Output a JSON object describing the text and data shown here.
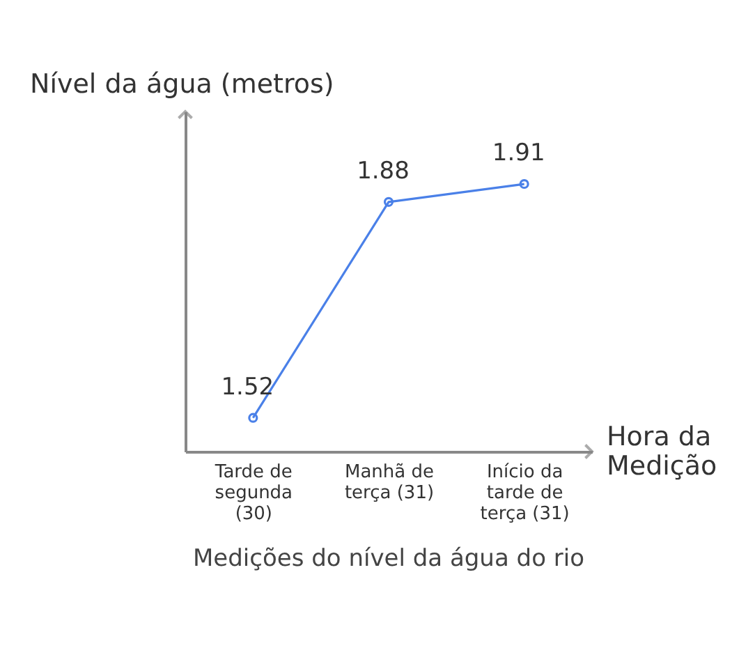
{
  "chart_data": {
    "type": "line",
    "title": "Medições do nível da água do rio",
    "xlabel": "Hora da Medição",
    "ylabel": "Nível da água (metros)",
    "categories": [
      "Tarde de segunda (30)",
      "Manhã de terça (31)",
      "Início da tarde de terça (31)"
    ],
    "series": [
      {
        "color": "#4a80e8",
        "values": [
          1.52,
          1.88,
          1.91
        ]
      }
    ],
    "data_labels": true,
    "marker": "circle",
    "line_style": "solid",
    "grid": false,
    "tick_labels": "x"
  }
}
